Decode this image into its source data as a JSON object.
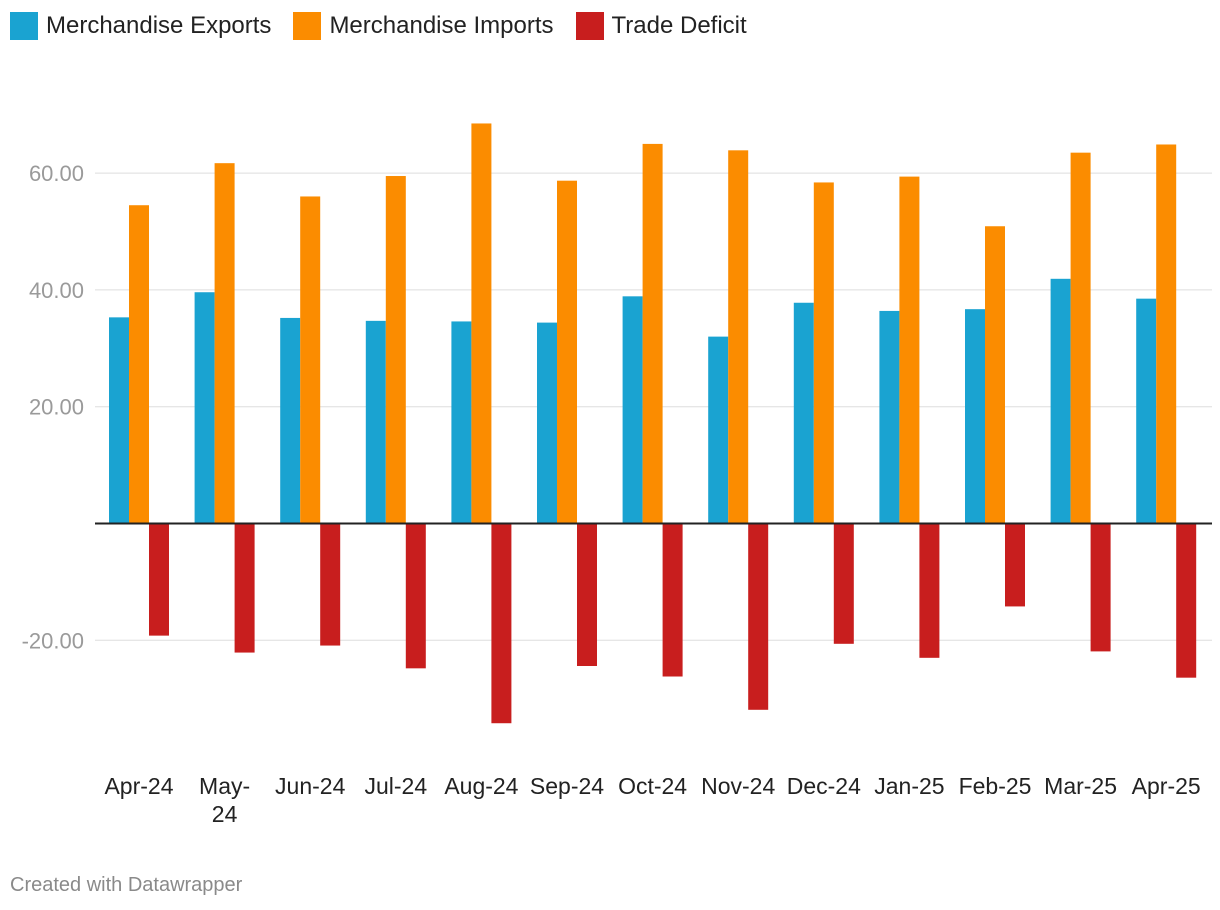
{
  "legend": [
    {
      "label": "Merchandise Exports",
      "color": "#1aa3d1"
    },
    {
      "label": "Merchandise Imports",
      "color": "#fb8c00"
    },
    {
      "label": "Trade Deficit",
      "color": "#c81e1e"
    }
  ],
  "credit": "Created with Datawrapper",
  "chart_data": {
    "type": "bar",
    "title": "",
    "xlabel": "",
    "ylabel": "",
    "ylim": [
      -40,
      75
    ],
    "yticks": [
      -20,
      20,
      40,
      60
    ],
    "ytick_labels": [
      "-20.00",
      "20.00",
      "40.00",
      "60.00"
    ],
    "categories": [
      [
        "Apr-24"
      ],
      [
        "May-",
        "24"
      ],
      [
        "Jun-24"
      ],
      [
        "Jul-24"
      ],
      [
        "Aug-24"
      ],
      [
        "Sep-24"
      ],
      [
        "Oct-24"
      ],
      [
        "Nov-24"
      ],
      [
        "Dec-24"
      ],
      [
        "Jan-25"
      ],
      [
        "Feb-25"
      ],
      [
        "Mar-25"
      ],
      [
        "Apr-25"
      ]
    ],
    "series": [
      {
        "name": "Merchandise Exports",
        "color": "#1aa3d1",
        "values": [
          35.3,
          39.6,
          35.2,
          34.7,
          34.6,
          34.4,
          38.9,
          32.0,
          37.8,
          36.4,
          36.7,
          41.9,
          38.5
        ]
      },
      {
        "name": "Merchandise Imports",
        "color": "#fb8c00",
        "values": [
          54.5,
          61.7,
          56.0,
          59.5,
          68.5,
          58.7,
          65.0,
          63.9,
          58.4,
          59.4,
          50.9,
          63.5,
          64.9
        ]
      },
      {
        "name": "Trade Deficit",
        "color": "#c81e1e",
        "values": [
          -19.2,
          -22.1,
          -20.9,
          -24.8,
          -34.2,
          -24.4,
          -26.2,
          -31.9,
          -20.6,
          -23.0,
          -14.2,
          -21.9,
          -26.4
        ]
      }
    ]
  }
}
